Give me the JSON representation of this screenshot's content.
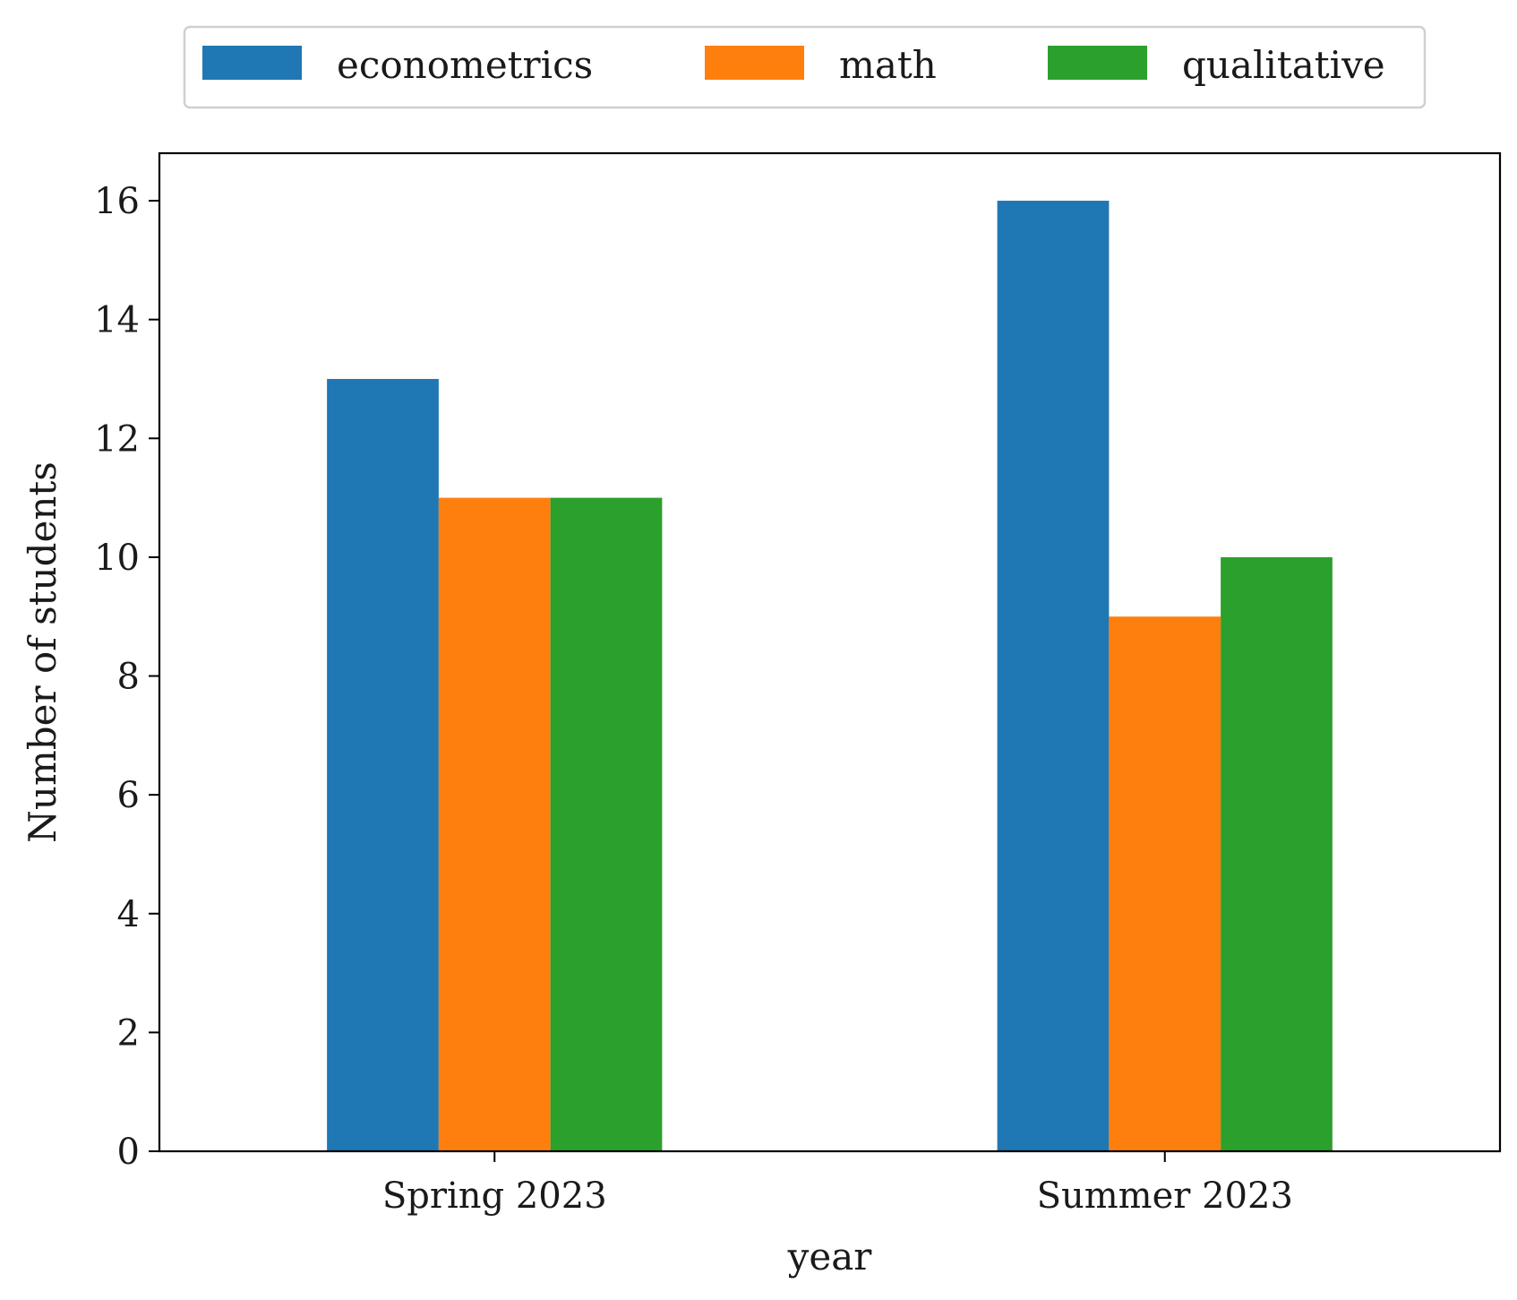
{
  "chart_data": {
    "type": "bar",
    "title": "",
    "xlabel": "year",
    "ylabel": "Number of students",
    "categories": [
      "Spring 2023",
      "Summer 2023"
    ],
    "series": [
      {
        "name": "econometrics",
        "color": "#1f77b4",
        "values": [
          13,
          16
        ]
      },
      {
        "name": "math",
        "color": "#ff7f0e",
        "values": [
          11,
          9
        ]
      },
      {
        "name": "qualitative",
        "color": "#2ca02c",
        "values": [
          11,
          10
        ]
      }
    ],
    "ylim": [
      0,
      16.8
    ],
    "yticks": [
      0,
      2,
      4,
      6,
      8,
      10,
      12,
      14,
      16
    ],
    "grid": false,
    "legend_position": "top-center"
  }
}
